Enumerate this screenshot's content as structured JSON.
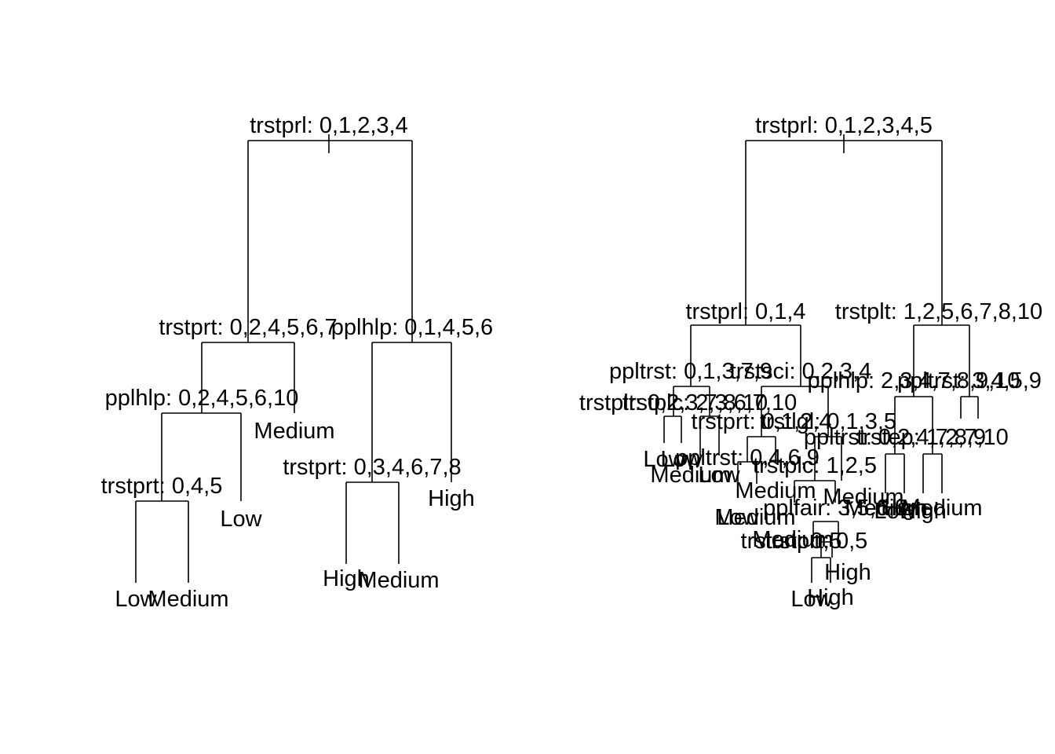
{
  "trees": [
    {
      "labels": {
        "root": "trstprl: 0,1,2,3,4",
        "a": "trstprt: 0,2,4,5,6,7",
        "b": "pplhlp: 0,1,4,5,6",
        "c": "pplhlp: 0,2,4,5,6,10",
        "d": "trstprt: 0,3,4,6,7,8",
        "e": "trstprt: 0,4,5",
        "leaf_medium_1": "Medium",
        "leaf_low_1": "Low",
        "leaf_high_1": "High",
        "leaf_high_2": "High",
        "leaf_medium_2": "Medium",
        "leaf_low_2": "Low",
        "leaf_medium_3": "Medium"
      }
    },
    {
      "labels": {
        "root": "trstprl: 0,1,2,3,4,5",
        "l": "trstprl: 0,1,4",
        "r": "trstplt: 1,2,5,6,7,8,10",
        "l1": "ppltrst: 0,1,3,7,9",
        "l2": "trstsci: 0,2,3,4",
        "r1": "pplhlp: 2,3,4,7,8,9,10",
        "r2": "ppltrst: 3,4,5,9",
        "m1": "trstplt: 0,2,3,7,8,10",
        "m2": "trstplc: 2,3,6,7,10",
        "m3": "trstprt: 0,1,2,4",
        "m4": "trstlgl: 0,1,3,5",
        "m5": "ppltrst: 0,2,4,7,8,9",
        "m6": "trstep: 1,2,7,10",
        "m7": "ppltrst: 0,4,6,9",
        "m8": "trstplc: 1,2,5",
        "m9": "pplfair: 3,5,6,8",
        "m10": "trstun: 0,5",
        "m11": "trstprt: 0,5",
        "leaf_1": "Low",
        "leaf_2": "Low",
        "leaf_3": "Medium",
        "leaf_4": "Low",
        "leaf_5": "Medium",
        "leaf_6": "Medium",
        "leaf_7": "Low",
        "leaf_8": "Medium",
        "leaf_9": "Medium",
        "leaf_10": "High",
        "leaf_11": "Low",
        "leaf_12": "High",
        "leaf_13": "Medium",
        "leaf_14": "High",
        "leaf_15": "Medium",
        "leaf_16": "Low",
        "leaf_17": "High"
      }
    }
  ]
}
